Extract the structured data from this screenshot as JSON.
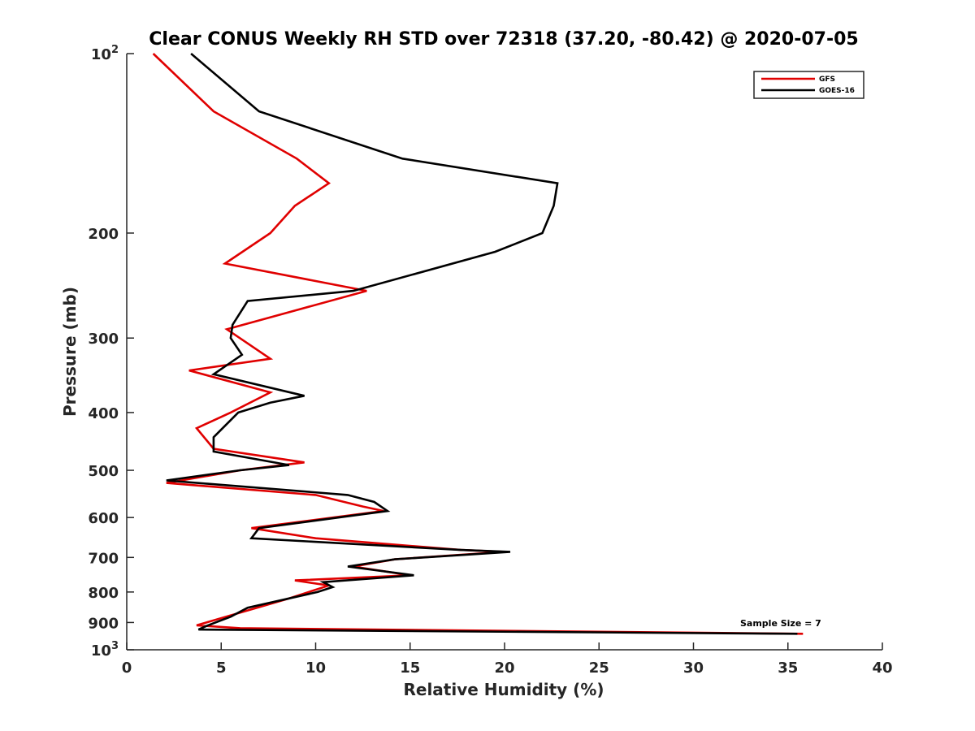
{
  "chart_data": {
    "type": "line",
    "title": "Clear CONUS Weekly RH STD over 72318 (37.20, -80.42) @ 2020-07-05",
    "xlabel": "Relative Humidity (%)",
    "ylabel": "Pressure (mb)",
    "xlim": [
      0,
      40
    ],
    "ylim": [
      100,
      1000
    ],
    "y_scale": "log",
    "y_reversed": true,
    "x_ticks": [
      0,
      5,
      10,
      15,
      20,
      25,
      30,
      35,
      40
    ],
    "y_ticks": [
      {
        "value": 100,
        "label": "10",
        "sup": "2"
      },
      {
        "value": 200,
        "label": "200"
      },
      {
        "value": 300,
        "label": "300"
      },
      {
        "value": 400,
        "label": "400"
      },
      {
        "value": 500,
        "label": "500"
      },
      {
        "value": 600,
        "label": "600"
      },
      {
        "value": 700,
        "label": "700"
      },
      {
        "value": 800,
        "label": "800"
      },
      {
        "value": 900,
        "label": "900"
      },
      {
        "value": 1000,
        "label": "10",
        "sup": "3"
      }
    ],
    "grid": false,
    "legend_position": "top-right",
    "annotation": "Sample Size = 7",
    "series": [
      {
        "name": "GFS",
        "color": "#e00000",
        "points": [
          [
            1.4,
            100
          ],
          [
            4.6,
            125
          ],
          [
            9.0,
            150
          ],
          [
            10.7,
            165
          ],
          [
            8.9,
            180
          ],
          [
            7.6,
            200
          ],
          [
            5.2,
            225
          ],
          [
            12.7,
            250
          ],
          [
            5.3,
            290
          ],
          [
            7.6,
            325
          ],
          [
            3.3,
            340
          ],
          [
            7.6,
            370
          ],
          [
            5.5,
            400
          ],
          [
            3.7,
            425
          ],
          [
            4.6,
            460
          ],
          [
            9.4,
            485
          ],
          [
            6.0,
            500
          ],
          [
            2.1,
            525
          ],
          [
            10.0,
            550
          ],
          [
            12.5,
            575
          ],
          [
            13.6,
            585
          ],
          [
            6.6,
            625
          ],
          [
            10.0,
            650
          ],
          [
            17.7,
            680
          ],
          [
            20.0,
            685
          ],
          [
            14.2,
            705
          ],
          [
            12.0,
            725
          ],
          [
            15.0,
            750
          ],
          [
            8.9,
            765
          ],
          [
            10.7,
            780
          ],
          [
            8.6,
            820
          ],
          [
            5.8,
            870
          ],
          [
            3.7,
            910
          ],
          [
            6.0,
            920
          ],
          [
            35.8,
            940
          ]
        ]
      },
      {
        "name": "GOES-16",
        "color": "#000000",
        "points": [
          [
            3.4,
            100
          ],
          [
            7.0,
            125
          ],
          [
            14.6,
            150
          ],
          [
            22.8,
            165
          ],
          [
            22.6,
            180
          ],
          [
            22.0,
            200
          ],
          [
            19.5,
            215
          ],
          [
            12.0,
            250
          ],
          [
            6.4,
            260
          ],
          [
            5.6,
            285
          ],
          [
            5.5,
            300
          ],
          [
            6.1,
            320
          ],
          [
            4.6,
            345
          ],
          [
            9.4,
            375
          ],
          [
            7.6,
            385
          ],
          [
            5.9,
            400
          ],
          [
            4.6,
            440
          ],
          [
            4.6,
            465
          ],
          [
            8.6,
            490
          ],
          [
            6.0,
            500
          ],
          [
            2.1,
            520
          ],
          [
            11.7,
            550
          ],
          [
            13.1,
            565
          ],
          [
            13.8,
            585
          ],
          [
            7.0,
            625
          ],
          [
            6.6,
            650
          ],
          [
            17.7,
            680
          ],
          [
            20.3,
            685
          ],
          [
            14.2,
            705
          ],
          [
            11.7,
            725
          ],
          [
            15.2,
            750
          ],
          [
            10.4,
            770
          ],
          [
            10.9,
            785
          ],
          [
            10.1,
            800
          ],
          [
            6.4,
            850
          ],
          [
            5.5,
            880
          ],
          [
            4.3,
            910
          ],
          [
            3.8,
            925
          ],
          [
            35.5,
            940
          ]
        ]
      }
    ]
  }
}
